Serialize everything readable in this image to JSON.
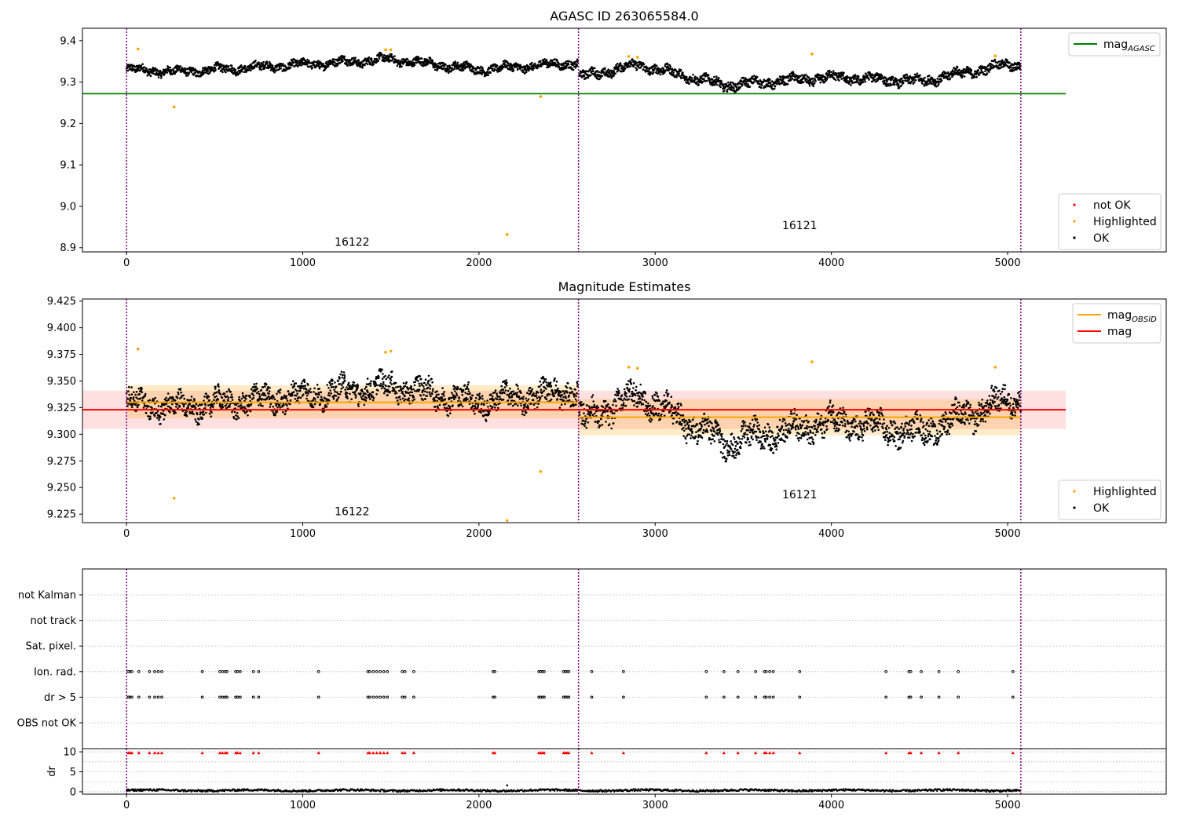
{
  "chart_data": [
    {
      "id": "agasc",
      "type": "scatter",
      "title": "AGASC ID 263065584.0",
      "xlim": [
        -250,
        5900
      ],
      "ylim": [
        8.89,
        9.43
      ],
      "xticks": [
        "0",
        "1000",
        "2000",
        "3000",
        "4000",
        "5000"
      ],
      "yticks": [
        "8.9",
        "9.0",
        "9.1",
        "9.2",
        "9.3",
        "9.4"
      ],
      "obsid_boundaries": [
        0,
        2565,
        5075
      ],
      "obsid_labels": [
        {
          "text": "16122",
          "x": 1280,
          "y": 8.905
        },
        {
          "text": "16121",
          "x": 3820,
          "y": 8.945
        }
      ],
      "lines": [
        {
          "name": "mag_AGASC",
          "color": "#008000",
          "x": [
            -250,
            5330
          ],
          "y": [
            9.272,
            9.272
          ]
        }
      ],
      "highlighted": {
        "x": [
          65,
          270,
          1470,
          1500,
          2160,
          2350,
          2850,
          2900,
          3890,
          4930
        ],
        "y": [
          9.38,
          9.24,
          9.378,
          9.378,
          8.932,
          9.265,
          9.362,
          9.36,
          9.368,
          9.363
        ]
      },
      "segments": [
        {
          "x0": 0,
          "x1": 2560,
          "base": 9.33,
          "trend": [
            [
              0,
              0.0
            ],
            [
              300,
              -0.005
            ],
            [
              1500,
              0.025
            ],
            [
              2000,
              0.0
            ],
            [
              2500,
              0.015
            ]
          ],
          "amp": 0.015
        },
        {
          "x0": 2570,
          "x1": 5075,
          "base": 9.312,
          "trend": [
            [
              2570,
              0.0
            ],
            [
              2900,
              0.03
            ],
            [
              3400,
              -0.02
            ],
            [
              4000,
              0.0
            ],
            [
              4500,
              -0.01
            ],
            [
              5000,
              0.03
            ]
          ],
          "amp": 0.017
        }
      ],
      "legends": [
        {
          "label": "mag",
          "sub": "AGASC",
          "color": "#008000",
          "kind": "line",
          "corner": "top-right"
        },
        {
          "label": "not OK",
          "color": "#ff0000",
          "kind": "dot",
          "corner": "bottom-right"
        },
        {
          "label": "Highlighted",
          "color": "#ffa500",
          "kind": "dot",
          "corner": "bottom-right"
        },
        {
          "label": "OK",
          "color": "#000000",
          "kind": "dot",
          "corner": "bottom-right"
        }
      ]
    },
    {
      "id": "estimates",
      "type": "scatter",
      "title": "Magnitude Estimates",
      "xlim": [
        -250,
        5900
      ],
      "ylim": [
        9.217,
        9.427
      ],
      "xticks": [
        "0",
        "1000",
        "2000",
        "3000",
        "4000",
        "5000"
      ],
      "yticks": [
        "9.225",
        "9.250",
        "9.275",
        "9.300",
        "9.325",
        "9.350",
        "9.375",
        "9.400",
        "9.425"
      ],
      "obsid_boundaries": [
        0,
        2565,
        5075
      ],
      "obsid_labels": [
        {
          "text": "16122",
          "x": 1280,
          "y": 9.224
        },
        {
          "text": "16121",
          "x": 3820,
          "y": 9.24
        }
      ],
      "lines": [
        {
          "name": "mag_OBSID 16122",
          "color": "#ffa500",
          "x": [
            0,
            2565
          ],
          "y": [
            9.33,
            9.33
          ]
        },
        {
          "name": "mag_OBSID 16121",
          "color": "#ffa500",
          "x": [
            2565,
            5075
          ],
          "y": [
            9.316,
            9.316
          ]
        },
        {
          "name": "mag",
          "color": "#ff0000",
          "x": [
            -250,
            5330
          ],
          "y": [
            9.323,
            9.323
          ]
        }
      ],
      "bands": [
        {
          "color": "rgba(255,0,0,0.12)",
          "x": [
            -250,
            5330
          ],
          "y": [
            9.305,
            9.341
          ]
        },
        {
          "color": "rgba(255,165,0,0.22)",
          "x": [
            0,
            2565
          ],
          "y": [
            9.315,
            9.346
          ]
        },
        {
          "color": "rgba(255,165,0,0.22)",
          "x": [
            2565,
            5075
          ],
          "y": [
            9.299,
            9.333
          ]
        }
      ],
      "highlighted": {
        "x": [
          65,
          270,
          1470,
          1500,
          2160,
          2350,
          2850,
          2900,
          3890,
          4930
        ],
        "y": [
          9.38,
          9.24,
          9.377,
          9.378,
          9.219,
          9.265,
          9.363,
          9.362,
          9.368,
          9.363
        ]
      },
      "segments": [
        {
          "x0": 0,
          "x1": 2560,
          "base": 9.33,
          "trend": [
            [
              0,
              0.0
            ],
            [
              300,
              -0.005
            ],
            [
              1500,
              0.015
            ],
            [
              2000,
              0.0
            ],
            [
              2500,
              0.01
            ]
          ],
          "amp": 0.016
        },
        {
          "x0": 2570,
          "x1": 5075,
          "base": 9.312,
          "trend": [
            [
              2570,
              0.0
            ],
            [
              2900,
              0.025
            ],
            [
              3400,
              -0.02
            ],
            [
              4000,
              0.0
            ],
            [
              4500,
              -0.01
            ],
            [
              5000,
              0.02
            ]
          ],
          "amp": 0.018
        }
      ],
      "legends": [
        {
          "label": "mag",
          "sub": "OBSID",
          "color": "#ffa500",
          "kind": "line",
          "corner": "top-right"
        },
        {
          "label": "mag",
          "color": "#ff0000",
          "kind": "line",
          "corner": "top-right"
        },
        {
          "label": "Highlighted",
          "color": "#ffa500",
          "kind": "dot",
          "corner": "bottom-right"
        },
        {
          "label": "OK",
          "color": "#000000",
          "kind": "dot",
          "corner": "bottom-right"
        }
      ]
    },
    {
      "id": "flags",
      "type": "scatter",
      "title": "",
      "xlim": [
        -250,
        5900
      ],
      "categories": [
        "OBS not OK",
        "dr > 5",
        "Ion. rad.",
        "Sat. pixel.",
        "not track",
        "not Kalman"
      ],
      "obsid_boundaries": [
        0,
        2565,
        5075
      ],
      "flagged_x": [
        10,
        20,
        30,
        70,
        130,
        160,
        180,
        200,
        430,
        530,
        545,
        560,
        570,
        620,
        630,
        645,
        720,
        750,
        1090,
        1370,
        1380,
        1400,
        1420,
        1440,
        1460,
        1480,
        1565,
        1580,
        1630,
        2080,
        2090,
        2340,
        2350,
        2360,
        2370,
        2480,
        2490,
        2500,
        2510,
        2640,
        2820,
        3290,
        3390,
        3470,
        3570,
        3620,
        3630,
        3650,
        3670,
        3820,
        4310,
        4440,
        4450,
        4510,
        4610,
        4720,
        5030
      ]
    },
    {
      "id": "dr",
      "type": "scatter",
      "title": "",
      "ylabel": "dr",
      "xlim": [
        -250,
        5900
      ],
      "ylim": [
        -0.6,
        10.8
      ],
      "xticks": [
        "0",
        "1000",
        "2000",
        "3000",
        "4000",
        "5000"
      ],
      "yticks": [
        "0",
        "5",
        "10"
      ],
      "obsid_boundaries": [
        0,
        2565,
        5075
      ],
      "clip_value": 10,
      "base": 0.35,
      "spike": {
        "x": 2160,
        "y": 1.6
      }
    }
  ]
}
